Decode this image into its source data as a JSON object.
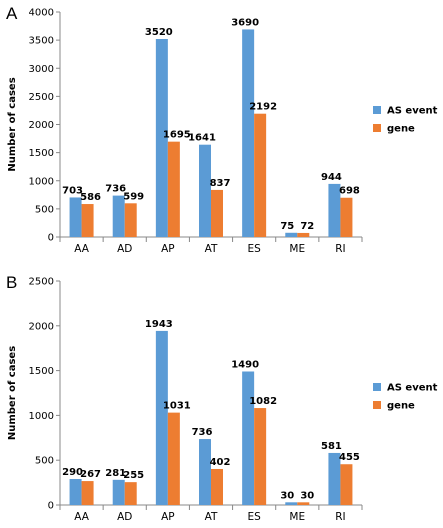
{
  "chart_data": [
    {
      "panel": "A",
      "type": "bar",
      "ylabel": "Number of cases",
      "ylim": [
        0,
        4000
      ],
      "yticks": [
        0,
        500,
        1000,
        1500,
        2000,
        2500,
        3000,
        3500,
        4000
      ],
      "categories": [
        "AA",
        "AD",
        "AP",
        "AT",
        "ES",
        "ME",
        "RI"
      ],
      "series": [
        {
          "name": "AS event",
          "color": "#5b9bd5",
          "values": [
            703,
            736,
            3520,
            1641,
            3690,
            75,
            944
          ]
        },
        {
          "name": "gene",
          "color": "#ed7d31",
          "values": [
            586,
            599,
            1695,
            837,
            2192,
            72,
            698
          ]
        }
      ],
      "legend_position": "right"
    },
    {
      "panel": "B",
      "type": "bar",
      "ylabel": "Number of cases",
      "ylim": [
        0,
        2500
      ],
      "yticks": [
        0,
        500,
        1000,
        1500,
        2000,
        2500
      ],
      "categories": [
        "AA",
        "AD",
        "AP",
        "AT",
        "ES",
        "ME",
        "RI"
      ],
      "series": [
        {
          "name": "AS event",
          "color": "#5b9bd5",
          "values": [
            290,
            281,
            1943,
            736,
            1490,
            30,
            581
          ]
        },
        {
          "name": "gene",
          "color": "#ed7d31",
          "values": [
            267,
            255,
            1031,
            402,
            1082,
            30,
            455
          ]
        }
      ],
      "legend_position": "right"
    }
  ]
}
